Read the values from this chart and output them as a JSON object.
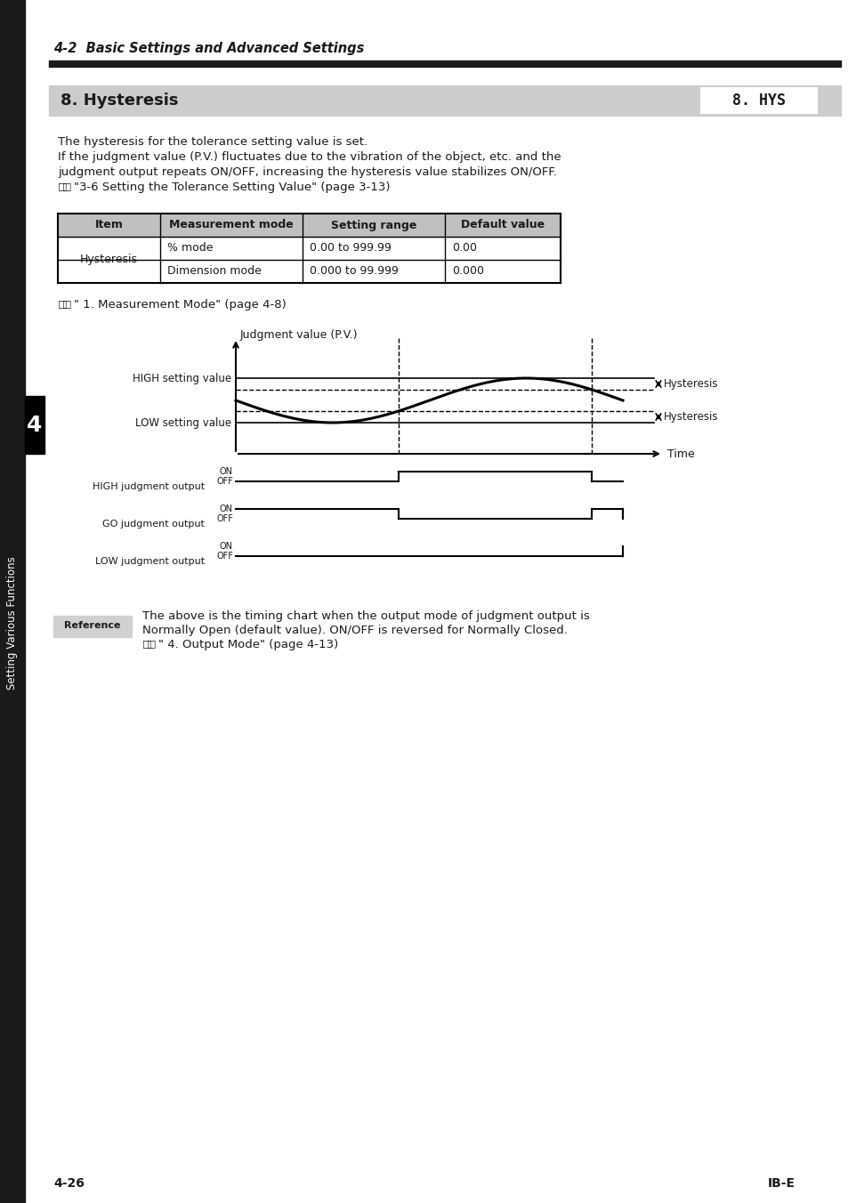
{
  "page_title": "4-2  Basic Settings and Advanced Settings",
  "section_title": "8. Hysteresis",
  "lcd_display": "8. HYS",
  "body_text": [
    "The hysteresis for the tolerance setting value is set.",
    "If the judgment value (P.V.) fluctuates due to the vibration of the object, etc. and the",
    "judgment output repeats ON/OFF, increasing the hysteresis value stabilizes ON/OFF."
  ],
  "body_ref": "\"3-6 Setting the Tolerance Setting Value\" (page 3-13)",
  "table_headers": [
    "Item",
    "Measurement mode",
    "Setting range",
    "Default value"
  ],
  "table_rows": [
    [
      "Hysteresis",
      "% mode",
      "0.00 to 999.99",
      "0.00"
    ],
    [
      "",
      "Dimension mode",
      "0.000 to 99.999",
      "0.000"
    ]
  ],
  "meas_mode_ref": "\" 1. Measurement Mode\" (page 4-8)",
  "diag_y_label": "Judgment value (P.V.)",
  "diag_x_label": "Time",
  "high_setting": "HIGH setting value",
  "low_setting": "LOW setting value",
  "hysteresis_label": "Hysteresis",
  "high_output": "HIGH judgment output",
  "go_output": "GO judgment output",
  "low_output": "LOW judgment output",
  "on_label": "ON",
  "off_label": "OFF",
  "ref_box_label": "Reference",
  "reference_text": [
    "The above is the timing chart when the output mode of judgment output is",
    "Normally Open (default value). ON/OFF is reversed for Normally Closed."
  ],
  "output_mode_ref": "\" 4. Output Mode\" (page 4-13)",
  "sidebar_text": "Setting Various Functions",
  "chapter_num": "4",
  "page_number": "4-26",
  "page_id": "IB-E",
  "bg_color": "#ffffff",
  "dark_color": "#1a1a1a",
  "section_bg": "#cccccc",
  "table_header_bg": "#c0c0c0",
  "sidebar_bg": "#1a1a1a",
  "ref_box_bg": "#d0d0d0"
}
